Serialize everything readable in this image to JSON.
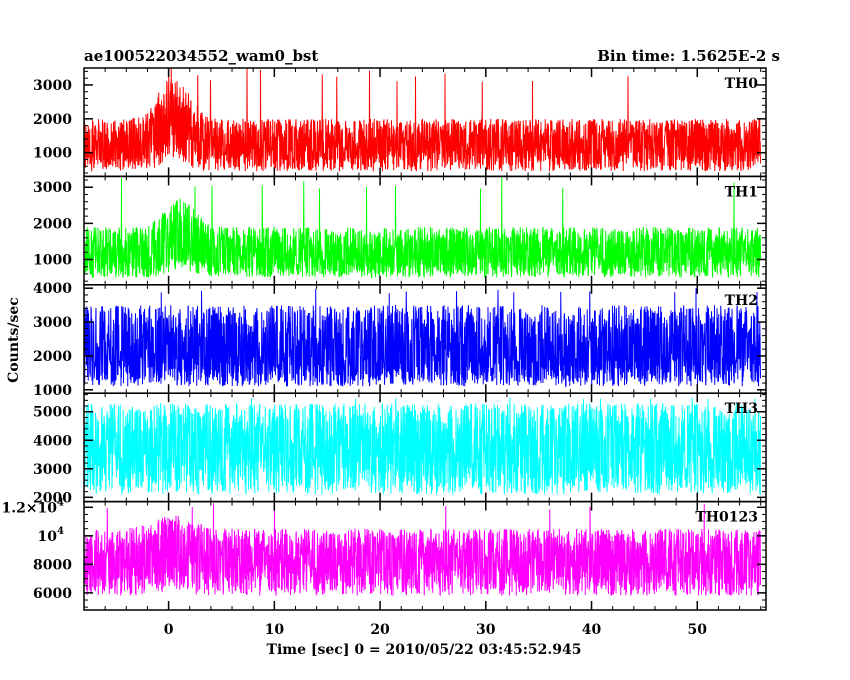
{
  "header": {
    "title": "ae100522034552_wam0_bst",
    "bin_time": "Bin time: 1.5625E-2 s"
  },
  "chart_data": {
    "type": "line",
    "title": "ae100522034552_wam0_bst",
    "xlabel": "Time [sec] 0 = 2010/05/22 03:45:52.945",
    "ylabel": "Counts/sec",
    "xlim": [
      -8,
      56.5
    ],
    "data_x_range": [
      -8,
      56
    ],
    "bin_time_s": 0.015625,
    "x_ticks": [
      "0",
      "10",
      "20",
      "30",
      "40",
      "50"
    ],
    "x_tick_values": [
      0,
      10,
      20,
      30,
      40,
      50
    ],
    "x_minor_step": 2,
    "panels": [
      {
        "name": "TH0",
        "color": "#ff0000",
        "ylim": [
          300,
          3500
        ],
        "ticks": [
          {
            "v": 1000,
            "label": "1000"
          },
          {
            "v": 2000,
            "label": "2000"
          },
          {
            "v": 3000,
            "label": "3000"
          }
        ],
        "minor_step": 200,
        "mean": 1200,
        "typical_high": 2000,
        "typical_low": 450,
        "max": 3550,
        "burst": {
          "t0": 0.5,
          "width": 2.0,
          "peak": 3300
        }
      },
      {
        "name": "TH1",
        "color": "#00ff00",
        "ylim": [
          300,
          3300
        ],
        "ticks": [
          {
            "v": 1000,
            "label": "1000"
          },
          {
            "v": 2000,
            "label": "2000"
          },
          {
            "v": 3000,
            "label": "3000"
          }
        ],
        "minor_step": 200,
        "mean": 1100,
        "typical_high": 1900,
        "typical_low": 500,
        "max": 3300,
        "burst": {
          "t0": 1.0,
          "width": 2.0,
          "peak": 2700
        }
      },
      {
        "name": "TH2",
        "color": "#0000ff",
        "ylim": [
          900,
          4100
        ],
        "ticks": [
          {
            "v": 1000,
            "label": "1000"
          },
          {
            "v": 2000,
            "label": "2000"
          },
          {
            "v": 3000,
            "label": "3000"
          },
          {
            "v": 4000,
            "label": "4000"
          }
        ],
        "minor_step": 200,
        "mean": 2000,
        "typical_high": 3500,
        "typical_low": 1100,
        "max": 4000,
        "burst": null
      },
      {
        "name": "TH3",
        "color": "#00ffff",
        "ylim": [
          1850,
          5650
        ],
        "ticks": [
          {
            "v": 2000,
            "label": "2000"
          },
          {
            "v": 3000,
            "label": "3000"
          },
          {
            "v": 4000,
            "label": "4000"
          },
          {
            "v": 5000,
            "label": "5000"
          }
        ],
        "minor_step": 200,
        "mean": 3600,
        "typical_high": 5300,
        "typical_low": 2100,
        "max": 5500,
        "burst": null
      },
      {
        "name": "TH0123",
        "color": "#ff00ff",
        "ylim": [
          4800,
          12400
        ],
        "ticks": [
          {
            "v": 6000,
            "label": "6000"
          },
          {
            "v": 8000,
            "label": "8000"
          },
          {
            "v": 10000,
            "label": "10",
            "sup": "4"
          },
          {
            "v": 12000,
            "label": "1.2×10",
            "sup": "4"
          }
        ],
        "minor_step": 500,
        "mean": 8100,
        "typical_high": 10500,
        "typical_low": 5800,
        "max": 12300,
        "burst": {
          "t0": 0.5,
          "width": 2.5,
          "peak": 11500
        }
      }
    ],
    "grid": false,
    "legend": "none"
  }
}
